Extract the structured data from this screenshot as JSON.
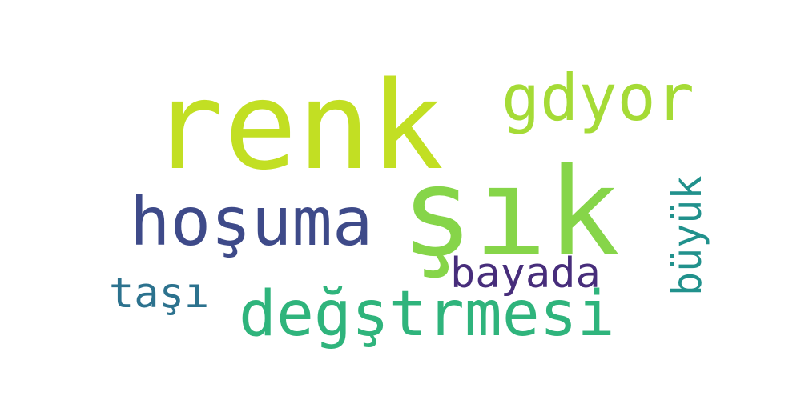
{
  "word_cloud": {
    "background": "#ffffff",
    "words": [
      {
        "text": "renk",
        "color": "#c2df23",
        "rotated": false
      },
      {
        "text": "şık",
        "color": "#86d549",
        "rotated": false
      },
      {
        "text": "gdyor",
        "color": "#a5db36",
        "rotated": false
      },
      {
        "text": "hoşuma",
        "color": "#3e4a89",
        "rotated": false
      },
      {
        "text": "bayada",
        "color": "#472d7b",
        "rotated": false
      },
      {
        "text": "büyük",
        "color": "#21918c",
        "rotated": true
      },
      {
        "text": "taşı",
        "color": "#2c728e",
        "rotated": false
      },
      {
        "text": "değştrmesi",
        "color": "#2fb47c",
        "rotated": false
      }
    ]
  }
}
